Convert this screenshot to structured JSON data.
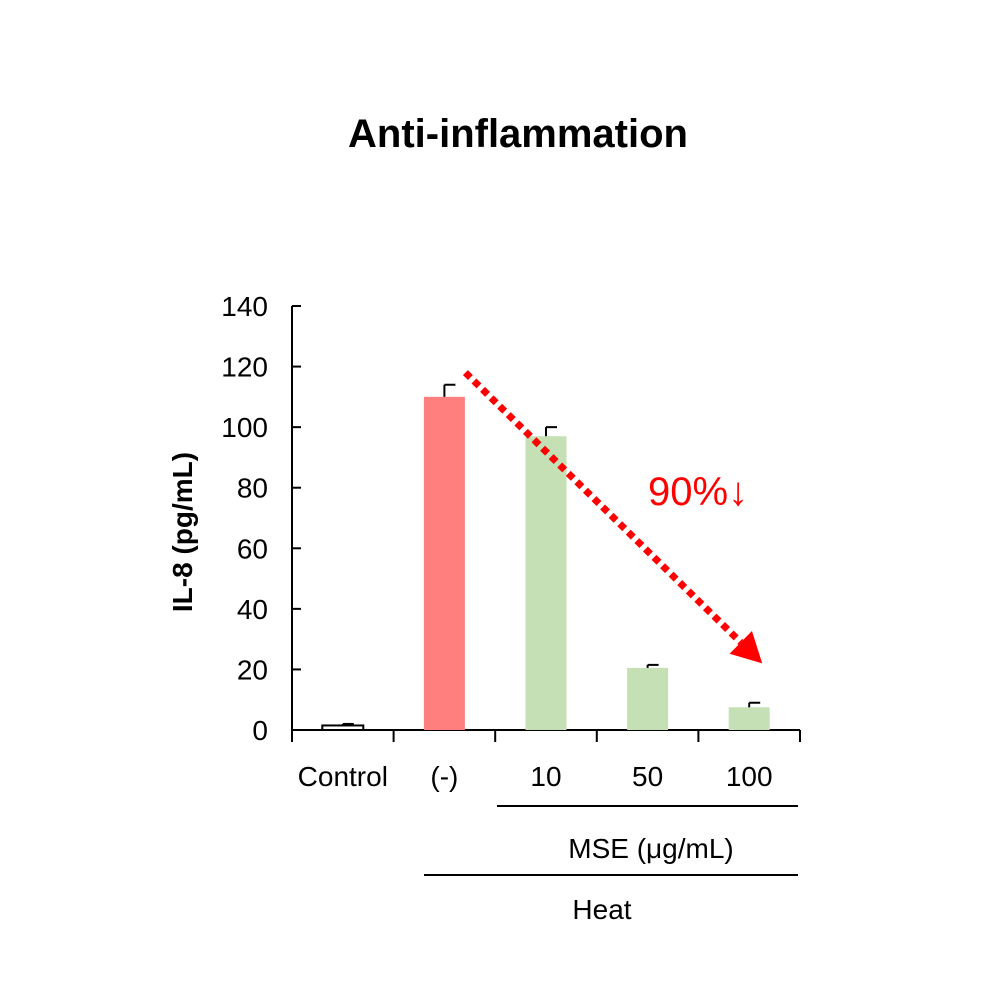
{
  "chart_data": {
    "type": "bar",
    "title": "Anti-inflammation",
    "ylabel": "IL-8 (pg/mL)",
    "xlabel": "",
    "ylim": [
      0,
      140
    ],
    "yticks": [
      "0",
      "20",
      "40",
      "60",
      "80",
      "100",
      "120",
      "140"
    ],
    "categories": [
      "Control",
      "(-)",
      "10",
      "50",
      "100"
    ],
    "values": [
      1.5,
      110,
      97,
      20.5,
      7.5
    ],
    "errors": [
      0.5,
      4,
      3,
      1,
      1.5
    ],
    "colors": [
      "#ffffff",
      "#ff7f7f",
      "#c5e0b4",
      "#c5e0b4",
      "#c5e0b4"
    ],
    "group_labels": {
      "mse": "MSE (μg/mL)",
      "heat": "Heat"
    },
    "annotation": {
      "text": "90%↓",
      "color": "#ff0000",
      "arrow_from": {
        "x_category": "(-)",
        "y": 118
      },
      "arrow_to": {
        "x_category": "100",
        "y": 22
      }
    },
    "grid": false,
    "legend": "none"
  }
}
